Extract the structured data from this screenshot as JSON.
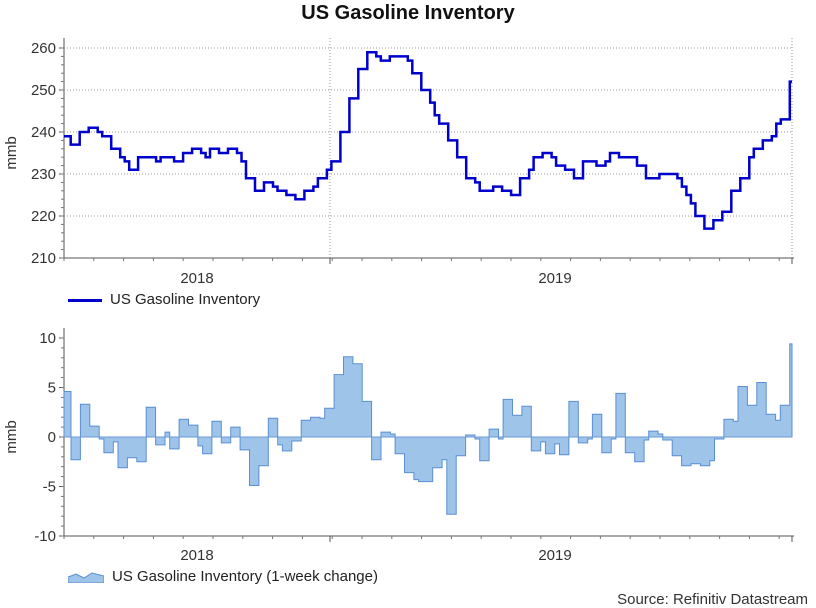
{
  "title": "US Gasoline Inventory",
  "source": "Source: Refinitiv Datastream",
  "colors": {
    "line": "#0000cc",
    "area_fill": "#9ec4ea",
    "area_stroke": "#5b8fd1",
    "grid": "#999999"
  },
  "chart_data": [
    {
      "type": "line",
      "ylabel": "mmb",
      "ylim": [
        210,
        260
      ],
      "yticks": [
        210,
        220,
        230,
        240,
        250,
        260
      ],
      "x_range": [
        "2017-09",
        "2019-11"
      ],
      "xtick_labels": [
        "2018",
        "2019"
      ],
      "grid": true,
      "legend_position": "bottom-left",
      "series": [
        {
          "name": "US Gasoline Inventory",
          "values": [
            239,
            239,
            237,
            237,
            240,
            240,
            241,
            241,
            240,
            239,
            239,
            236,
            236,
            234,
            233,
            231,
            231,
            234,
            234,
            234,
            234,
            233,
            234,
            234,
            234,
            233,
            233,
            235,
            235,
            236,
            236,
            235,
            234,
            236,
            236,
            235,
            235,
            236,
            236,
            235,
            233,
            229,
            229,
            226,
            226,
            228,
            228,
            227,
            226,
            226,
            225,
            225,
            224,
            224,
            226,
            226,
            227,
            229,
            229,
            231,
            233,
            233,
            240,
            240,
            248,
            248,
            255,
            255,
            259,
            259,
            258,
            257,
            257,
            258,
            258,
            258,
            258,
            257,
            254,
            254,
            250,
            250,
            247,
            244,
            242,
            242,
            238,
            238,
            234,
            234,
            229,
            229,
            228,
            226,
            226,
            226,
            227,
            227,
            226,
            226,
            225,
            225,
            229,
            229,
            231,
            234,
            234,
            235,
            235,
            234,
            232,
            232,
            231,
            231,
            229,
            229,
            233,
            233,
            233,
            232,
            232,
            233,
            235,
            235,
            234,
            234,
            234,
            234,
            232,
            232,
            229,
            229,
            229,
            230,
            230,
            230,
            230,
            229,
            227,
            225,
            223,
            220,
            220,
            217,
            217,
            219,
            219,
            221,
            221,
            226,
            226,
            229,
            229,
            234,
            236,
            236,
            238,
            238,
            239,
            242,
            243,
            243,
            252
          ]
        }
      ]
    },
    {
      "type": "area",
      "ylabel": "mmb",
      "ylim": [
        -10,
        10
      ],
      "yticks": [
        -10,
        -5,
        0,
        5,
        10
      ],
      "x_range": [
        "2017-09",
        "2019-11"
      ],
      "xtick_labels": [
        "2018",
        "2019"
      ],
      "grid": false,
      "legend_position": "bottom-left",
      "series": [
        {
          "name": "US Gasoline Inventory (1-week change)",
          "values": [
            4.6,
            4.6,
            -2.3,
            -2.3,
            3.3,
            3.3,
            1.1,
            1.1,
            -0.2,
            -1.6,
            -1.6,
            -0.5,
            -3.1,
            -3.1,
            -2.1,
            -2.1,
            -2.5,
            -2.5,
            3,
            3,
            -0.8,
            -0.8,
            0.5,
            -1.2,
            -1.2,
            1.8,
            1.8,
            1.2,
            1.2,
            -0.9,
            -1.7,
            -1.7,
            1.6,
            1.6,
            -0.6,
            -0.6,
            1,
            1,
            -1.3,
            -1.3,
            -4.9,
            -4.9,
            -2.9,
            -2.9,
            1.9,
            1.9,
            -0.8,
            -1.4,
            -1.4,
            -0.4,
            -0.4,
            1.7,
            1.7,
            2,
            2,
            1.9,
            2.9,
            2.9,
            6.3,
            6.3,
            8.1,
            8.1,
            7.4,
            7.4,
            3.6,
            3.6,
            -2.3,
            -2.3,
            0.5,
            0.5,
            0.3,
            -1.7,
            -1.7,
            -3.6,
            -3.6,
            -4.3,
            -4.5,
            -4.5,
            -4.5,
            -3.1,
            -3.1,
            -2.3,
            -7.8,
            -7.8,
            -1.9,
            -1.9,
            0.2,
            0.2,
            -0.2,
            -2.4,
            -2.4,
            0.8,
            0.8,
            -0.2,
            3.8,
            3.8,
            2.2,
            2.2,
            3.1,
            3.1,
            -1.4,
            -1.4,
            -0.5,
            -1.7,
            -1.7,
            -0.7,
            -1.8,
            -1.8,
            3.6,
            3.6,
            -0.6,
            -0.6,
            -0.2,
            2.3,
            2.3,
            -1.6,
            -1.6,
            -0.2,
            4.4,
            4.4,
            -1.6,
            -1.6,
            -2.5,
            -2.5,
            -0.3,
            0.6,
            0.6,
            0.3,
            -0.3,
            -0.3,
            -1.9,
            -1.9,
            -2.9,
            -2.9,
            -2.7,
            -2.7,
            -2.9,
            -2.9,
            -2.4,
            -0.2,
            -0.2,
            1.8,
            1.8,
            1.6,
            5.1,
            5.1,
            3.2,
            3.2,
            5.5,
            5.5,
            2.3,
            2.3,
            1.7,
            3.2,
            3.2,
            9.4
          ]
        }
      ]
    }
  ]
}
